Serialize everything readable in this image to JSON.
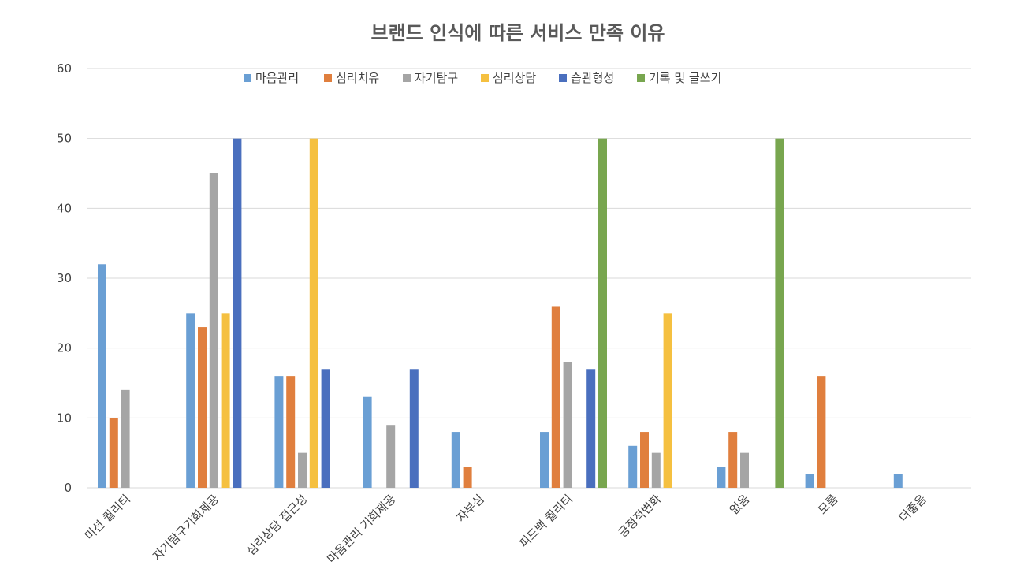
{
  "chart_data": {
    "type": "bar",
    "title": "브랜드 인식에 따른 서비스 만족 이유",
    "xlabel": "",
    "ylabel": "",
    "ylim": [
      0,
      60
    ],
    "yticks": [
      0,
      10,
      20,
      30,
      40,
      50,
      60
    ],
    "grid": true,
    "legend_position": "top",
    "categories": [
      "미션 퀄리티",
      "자기탐구기회제공",
      "심리상담 접근성",
      "마음관리 기회제공",
      "자부심",
      "피드백 퀄리티",
      "긍정적변화",
      "없음",
      "모름",
      "더좋음"
    ],
    "series": [
      {
        "name": "마음관리",
        "color": "#6a9fd4",
        "values": [
          32,
          25,
          16,
          13,
          8,
          8,
          6,
          3,
          2,
          2
        ]
      },
      {
        "name": "심리치유",
        "color": "#e07f3e",
        "values": [
          10,
          23,
          16,
          null,
          3,
          26,
          8,
          8,
          16,
          null
        ]
      },
      {
        "name": "자기탐구",
        "color": "#a5a5a5",
        "values": [
          14,
          45,
          5,
          9,
          null,
          18,
          5,
          5,
          null,
          null
        ]
      },
      {
        "name": "심리상담",
        "color": "#f5c040",
        "values": [
          null,
          25,
          50,
          null,
          null,
          null,
          25,
          null,
          null,
          null
        ]
      },
      {
        "name": "습관형성",
        "color": "#4a6fbe",
        "values": [
          null,
          50,
          17,
          17,
          null,
          17,
          null,
          null,
          null,
          null
        ]
      },
      {
        "name": "기록 및 글쓰기",
        "color": "#78a64f",
        "values": [
          null,
          null,
          null,
          null,
          null,
          50,
          null,
          50,
          null,
          null
        ]
      }
    ]
  }
}
